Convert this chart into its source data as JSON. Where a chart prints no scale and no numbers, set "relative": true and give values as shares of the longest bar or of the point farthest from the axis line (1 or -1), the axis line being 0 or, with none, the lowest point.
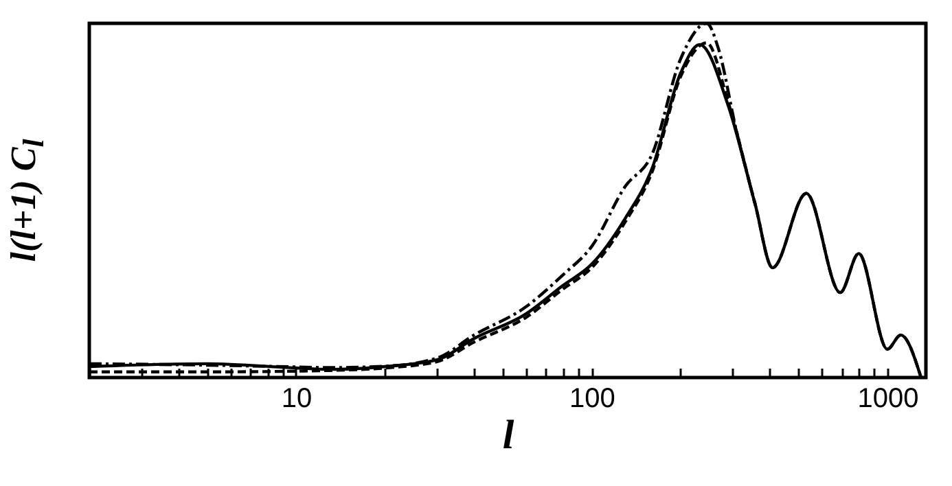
{
  "chart_data": {
    "type": "line",
    "relative": true,
    "log": "x",
    "xlabel": "l",
    "ylabel": "l(l+1) C$_{l}$",
    "xlim": [
      2,
      1350
    ],
    "xticks": [
      {
        "value": 2,
        "label": null
      },
      {
        "value": 3,
        "label": null
      },
      {
        "value": 4,
        "label": null
      },
      {
        "value": 5,
        "label": null
      },
      {
        "value": 6,
        "label": null
      },
      {
        "value": 7,
        "label": null
      },
      {
        "value": 8,
        "label": null
      },
      {
        "value": 9,
        "label": null
      },
      10,
      {
        "value": 20,
        "label": null
      },
      {
        "value": 30,
        "label": null
      },
      {
        "value": 40,
        "label": null
      },
      {
        "value": 50,
        "label": null
      },
      {
        "value": 60,
        "label": null
      },
      {
        "value": 70,
        "label": null
      },
      {
        "value": 80,
        "label": null
      },
      {
        "value": 90,
        "label": null
      },
      100,
      {
        "value": 200,
        "label": null
      },
      {
        "value": 300,
        "label": null
      },
      {
        "value": 400,
        "label": null
      },
      {
        "value": 500,
        "label": null
      },
      {
        "value": 600,
        "label": null
      },
      {
        "value": 700,
        "label": null
      },
      {
        "value": 800,
        "label": null
      },
      {
        "value": 900,
        "label": null
      },
      1000
    ],
    "grid": false,
    "series": [
      {
        "color": "#000000",
        "line_style": "solid",
        "x": [
          2,
          5,
          10,
          13,
          20,
          30,
          40,
          60,
          80,
          100,
          130,
          160,
          200,
          232,
          289,
          357,
          409,
          532,
          693,
          800,
          1000,
          1110,
          1300
        ],
        "values": [
          0.031,
          0.039,
          0.027,
          0.023,
          0.031,
          0.05,
          0.11,
          0.18,
          0.26,
          0.32,
          0.45,
          0.59,
          0.86,
          0.94,
          0.77,
          0.49,
          0.31,
          0.52,
          0.24,
          0.35,
          0.08,
          0.12,
          0.0
        ]
      },
      {
        "color": "#000000",
        "line_style": "dashed",
        "x": [
          2,
          5,
          10,
          13,
          20,
          30,
          40,
          60,
          80,
          100,
          130,
          160,
          200,
          245,
          289,
          357,
          409,
          532,
          693,
          800,
          1000,
          1110,
          1300
        ],
        "values": [
          0.016,
          0.016,
          0.018,
          0.02,
          0.027,
          0.045,
          0.1,
          0.17,
          0.25,
          0.31,
          0.44,
          0.58,
          0.85,
          0.945,
          0.78,
          0.49,
          0.31,
          0.52,
          0.24,
          0.35,
          0.08,
          0.12,
          0.0
        ]
      },
      {
        "color": "#000000",
        "line_style": "dashdot",
        "x": [
          2,
          5,
          10,
          13,
          20,
          30,
          40,
          60,
          80,
          100,
          130,
          160,
          200,
          245,
          268,
          308,
          357
        ],
        "values": [
          0.039,
          0.035,
          0.03,
          0.028,
          0.032,
          0.055,
          0.12,
          0.2,
          0.29,
          0.37,
          0.54,
          0.63,
          0.9,
          1.0,
          0.93,
          0.7,
          0.49
        ]
      }
    ]
  }
}
